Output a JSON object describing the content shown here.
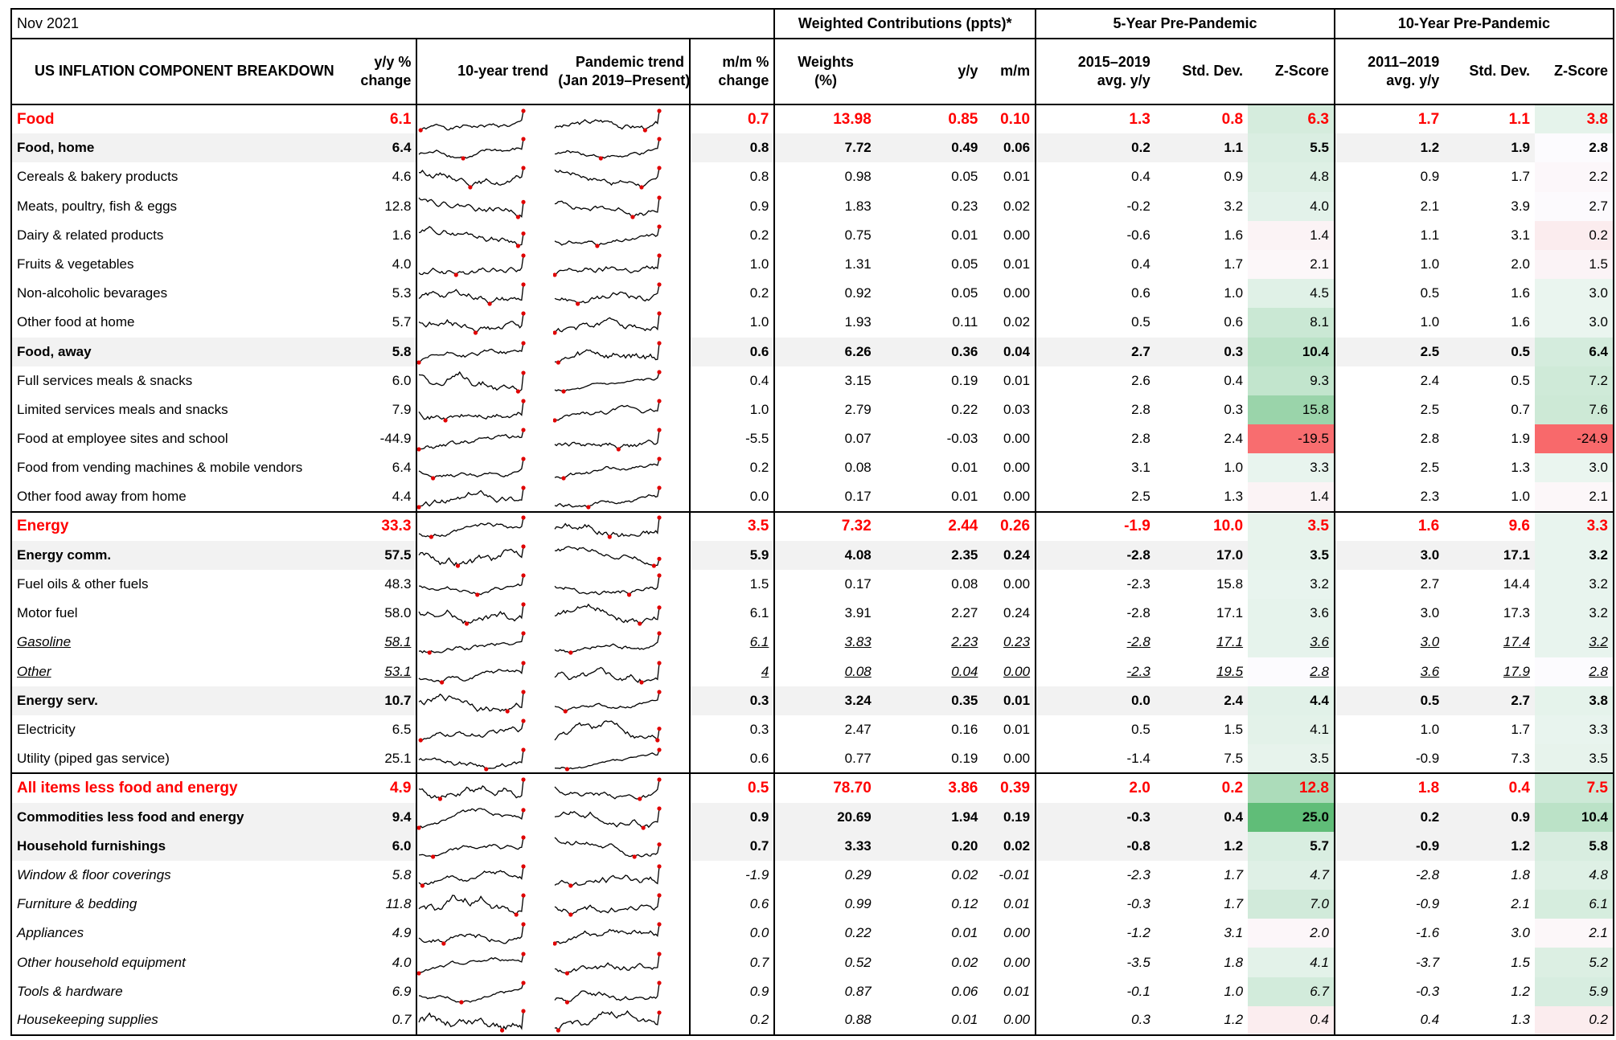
{
  "title": "Nov 2021",
  "group_headers": {
    "weighted": "Weighted Contributions (ppts)*",
    "five_year": "5-Year Pre-Pandemic",
    "ten_year": "10-Year Pre-Pandemic"
  },
  "headers": {
    "name": "US INFLATION COMPONENT BREAKDOWN",
    "yy_1": "y/y %",
    "yy_2": "change",
    "trend10": "10-year trend",
    "pand_1": "Pandemic trend",
    "pand_2": "(Jan 2019–Present)",
    "mm_1": "m/m %",
    "mm_2": "change",
    "weights_1": "Weights",
    "weights_2": "(%)",
    "c_yy": "y/y",
    "c_mm": "m/m",
    "avg5_1": "2015–2019",
    "avg5_2": "avg. y/y",
    "sd5": "Std. Dev.",
    "z5": "Z-Score",
    "avg10_1": "2011–2019",
    "avg10_2": "avg. y/y",
    "sd10": "Std. Dev.",
    "z10": "Z-Score"
  },
  "zscore_colors": {
    "positive": "#63be7b",
    "negative": "#f8696b",
    "neutral": "#fcfcff"
  },
  "rows": [
    {
      "name": "Food",
      "tier": 0,
      "yy": "6.1",
      "mm": "0.7",
      "w": "13.98",
      "cyy": "0.85",
      "cmm": "0.10",
      "a5": "1.3",
      "s5": "0.8",
      "z5": "6.3",
      "a10": "1.7",
      "s10": "1.1",
      "z10": "3.8"
    },
    {
      "name": "Food, home",
      "tier": 1,
      "yy": "6.4",
      "mm": "0.8",
      "w": "7.72",
      "cyy": "0.49",
      "cmm": "0.06",
      "a5": "0.2",
      "s5": "1.1",
      "z5": "5.5",
      "a10": "1.2",
      "s10": "1.9",
      "z10": "2.8"
    },
    {
      "name": "Cereals & bakery products",
      "tier": 2,
      "yy": "4.6",
      "mm": "0.8",
      "w": "0.98",
      "cyy": "0.05",
      "cmm": "0.01",
      "a5": "0.4",
      "s5": "0.9",
      "z5": "4.8",
      "a10": "0.9",
      "s10": "1.7",
      "z10": "2.2"
    },
    {
      "name": "Meats, poultry, fish & eggs",
      "tier": 2,
      "yy": "12.8",
      "mm": "0.9",
      "w": "1.83",
      "cyy": "0.23",
      "cmm": "0.02",
      "a5": "-0.2",
      "s5": "3.2",
      "z5": "4.0",
      "a10": "2.1",
      "s10": "3.9",
      "z10": "2.7"
    },
    {
      "name": "Dairy & related products",
      "tier": 2,
      "yy": "1.6",
      "mm": "0.2",
      "w": "0.75",
      "cyy": "0.01",
      "cmm": "0.00",
      "a5": "-0.6",
      "s5": "1.6",
      "z5": "1.4",
      "a10": "1.1",
      "s10": "3.1",
      "z10": "0.2"
    },
    {
      "name": "Fruits & vegetables",
      "tier": 2,
      "yy": "4.0",
      "mm": "1.0",
      "w": "1.31",
      "cyy": "0.05",
      "cmm": "0.01",
      "a5": "0.4",
      "s5": "1.7",
      "z5": "2.1",
      "a10": "1.0",
      "s10": "2.0",
      "z10": "1.5"
    },
    {
      "name": "Non-alcoholic bevarages",
      "tier": 2,
      "yy": "5.3",
      "mm": "0.2",
      "w": "0.92",
      "cyy": "0.05",
      "cmm": "0.00",
      "a5": "0.6",
      "s5": "1.0",
      "z5": "4.5",
      "a10": "0.5",
      "s10": "1.6",
      "z10": "3.0"
    },
    {
      "name": "Other food at home",
      "tier": 2,
      "yy": "5.7",
      "mm": "1.0",
      "w": "1.93",
      "cyy": "0.11",
      "cmm": "0.02",
      "a5": "0.5",
      "s5": "0.6",
      "z5": "8.1",
      "a10": "1.0",
      "s10": "1.6",
      "z10": "3.0"
    },
    {
      "name": "Food, away",
      "tier": 1,
      "yy": "5.8",
      "mm": "0.6",
      "w": "6.26",
      "cyy": "0.36",
      "cmm": "0.04",
      "a5": "2.7",
      "s5": "0.3",
      "z5": "10.4",
      "a10": "2.5",
      "s10": "0.5",
      "z10": "6.4"
    },
    {
      "name": "Full services meals & snacks",
      "tier": 2,
      "yy": "6.0",
      "mm": "0.4",
      "w": "3.15",
      "cyy": "0.19",
      "cmm": "0.01",
      "a5": "2.6",
      "s5": "0.4",
      "z5": "9.3",
      "a10": "2.4",
      "s10": "0.5",
      "z10": "7.2"
    },
    {
      "name": "Limited services meals and snacks",
      "tier": 2,
      "yy": "7.9",
      "mm": "1.0",
      "w": "2.79",
      "cyy": "0.22",
      "cmm": "0.03",
      "a5": "2.8",
      "s5": "0.3",
      "z5": "15.8",
      "a10": "2.5",
      "s10": "0.7",
      "z10": "7.6"
    },
    {
      "name": "Food at employee sites and school",
      "tier": 2,
      "yy": "-44.9",
      "mm": "-5.5",
      "w": "0.07",
      "cyy": "-0.03",
      "cmm": "0.00",
      "a5": "2.8",
      "s5": "2.4",
      "z5": "-19.5",
      "a10": "2.8",
      "s10": "1.9",
      "z10": "-24.9"
    },
    {
      "name": "Food from vending machines & mobile vendors",
      "tier": 2,
      "yy": "6.4",
      "mm": "0.2",
      "w": "0.08",
      "cyy": "0.01",
      "cmm": "0.00",
      "a5": "3.1",
      "s5": "1.0",
      "z5": "3.3",
      "a10": "2.5",
      "s10": "1.3",
      "z10": "3.0"
    },
    {
      "name": "Other food away from home",
      "tier": 2,
      "yy": "4.4",
      "mm": "0.0",
      "w": "0.17",
      "cyy": "0.01",
      "cmm": "0.00",
      "a5": "2.5",
      "s5": "1.3",
      "z5": "1.4",
      "a10": "2.3",
      "s10": "1.0",
      "z10": "2.1"
    },
    {
      "name": "Energy",
      "tier": 0,
      "yy": "33.3",
      "mm": "3.5",
      "w": "7.32",
      "cyy": "2.44",
      "cmm": "0.26",
      "a5": "-1.9",
      "s5": "10.0",
      "z5": "3.5",
      "a10": "1.6",
      "s10": "9.6",
      "z10": "3.3"
    },
    {
      "name": "Energy comm.",
      "tier": 1,
      "yy": "57.5",
      "mm": "5.9",
      "w": "4.08",
      "cyy": "2.35",
      "cmm": "0.24",
      "a5": "-2.8",
      "s5": "17.0",
      "z5": "3.5",
      "a10": "3.0",
      "s10": "17.1",
      "z10": "3.2"
    },
    {
      "name": "Fuel oils & other fuels",
      "tier": 2,
      "yy": "48.3",
      "mm": "1.5",
      "w": "0.17",
      "cyy": "0.08",
      "cmm": "0.00",
      "a5": "-2.3",
      "s5": "15.8",
      "z5": "3.2",
      "a10": "2.7",
      "s10": "14.4",
      "z10": "3.2"
    },
    {
      "name": "Motor fuel",
      "tier": 2,
      "yy": "58.0",
      "mm": "6.1",
      "w": "3.91",
      "cyy": "2.27",
      "cmm": "0.24",
      "a5": "-2.8",
      "s5": "17.1",
      "z5": "3.6",
      "a10": "3.0",
      "s10": "17.3",
      "z10": "3.2"
    },
    {
      "name": "Gasoline",
      "tier": 3,
      "yy": "58.1",
      "mm": "6.1",
      "w": "3.83",
      "cyy": "2.23",
      "cmm": "0.23",
      "a5": "-2.8",
      "s5": "17.1",
      "z5": "3.6",
      "a10": "3.0",
      "s10": "17.4",
      "z10": "3.2"
    },
    {
      "name": "Other",
      "tier": 3,
      "yy": "53.1",
      "mm": "4",
      "w": "0.08",
      "cyy": "0.04",
      "cmm": "0.00",
      "a5": "-2.3",
      "s5": "19.5",
      "z5": "2.8",
      "a10": "3.6",
      "s10": "17.9",
      "z10": "2.8"
    },
    {
      "name": "Energy serv.",
      "tier": 1,
      "yy": "10.7",
      "mm": "0.3",
      "w": "3.24",
      "cyy": "0.35",
      "cmm": "0.01",
      "a5": "0.0",
      "s5": "2.4",
      "z5": "4.4",
      "a10": "0.5",
      "s10": "2.7",
      "z10": "3.8"
    },
    {
      "name": "Electricity",
      "tier": 2,
      "yy": "6.5",
      "mm": "0.3",
      "w": "2.47",
      "cyy": "0.16",
      "cmm": "0.01",
      "a5": "0.5",
      "s5": "1.5",
      "z5": "4.1",
      "a10": "1.0",
      "s10": "1.7",
      "z10": "3.3"
    },
    {
      "name": "Utility (piped gas service)",
      "tier": 2,
      "yy": "25.1",
      "mm": "0.6",
      "w": "0.77",
      "cyy": "0.19",
      "cmm": "0.00",
      "a5": "-1.4",
      "s5": "7.5",
      "z5": "3.5",
      "a10": "-0.9",
      "s10": "7.3",
      "z10": "3.5"
    },
    {
      "name": "All items less food and energy",
      "tier": 0,
      "yy": "4.9",
      "mm": "0.5",
      "w": "78.70",
      "cyy": "3.86",
      "cmm": "0.39",
      "a5": "2.0",
      "s5": "0.2",
      "z5": "12.8",
      "a10": "1.8",
      "s10": "0.4",
      "z10": "7.5"
    },
    {
      "name": "Commodities less food and energy",
      "tier": 1,
      "yy": "9.4",
      "mm": "0.9",
      "w": "20.69",
      "cyy": "1.94",
      "cmm": "0.19",
      "a5": "-0.3",
      "s5": "0.4",
      "z5": "25.0",
      "a10": "0.2",
      "s10": "0.9",
      "z10": "10.4"
    },
    {
      "name": "Household furnishings",
      "tier": 1,
      "yy": "6.0",
      "mm": "0.7",
      "w": "3.33",
      "cyy": "0.20",
      "cmm": "0.02",
      "a5": "-0.8",
      "s5": "1.2",
      "z5": "5.7",
      "a10": "-0.9",
      "s10": "1.2",
      "z10": "5.8"
    },
    {
      "name": "Window & floor coverings",
      "tier": 4,
      "yy": "5.8",
      "mm": "-1.9",
      "w": "0.29",
      "cyy": "0.02",
      "cmm": "-0.01",
      "a5": "-2.3",
      "s5": "1.7",
      "z5": "4.7",
      "a10": "-2.8",
      "s10": "1.8",
      "z10": "4.8"
    },
    {
      "name": "Furniture & bedding",
      "tier": 4,
      "yy": "11.8",
      "mm": "0.6",
      "w": "0.99",
      "cyy": "0.12",
      "cmm": "0.01",
      "a5": "-0.3",
      "s5": "1.7",
      "z5": "7.0",
      "a10": "-0.9",
      "s10": "2.1",
      "z10": "6.1"
    },
    {
      "name": "Appliances",
      "tier": 4,
      "yy": "4.9",
      "mm": "0.0",
      "w": "0.22",
      "cyy": "0.01",
      "cmm": "0.00",
      "a5": "-1.2",
      "s5": "3.1",
      "z5": "2.0",
      "a10": "-1.6",
      "s10": "3.0",
      "z10": "2.1"
    },
    {
      "name": "Other household equipment",
      "tier": 4,
      "yy": "4.0",
      "mm": "0.7",
      "w": "0.52",
      "cyy": "0.02",
      "cmm": "0.00",
      "a5": "-3.5",
      "s5": "1.8",
      "z5": "4.1",
      "a10": "-3.7",
      "s10": "1.5",
      "z10": "5.2"
    },
    {
      "name": "Tools & hardware",
      "tier": 4,
      "yy": "6.9",
      "mm": "0.9",
      "w": "0.87",
      "cyy": "0.06",
      "cmm": "0.01",
      "a5": "-0.1",
      "s5": "1.0",
      "z5": "6.7",
      "a10": "-0.3",
      "s10": "1.2",
      "z10": "5.9"
    },
    {
      "name": "Housekeeping supplies",
      "tier": 4,
      "yy": "0.7",
      "mm": "0.2",
      "w": "0.88",
      "cyy": "0.01",
      "cmm": "0.00",
      "a5": "0.3",
      "s5": "1.2",
      "z5": "0.4",
      "a10": "0.4",
      "s10": "1.3",
      "z10": "0.2"
    }
  ]
}
